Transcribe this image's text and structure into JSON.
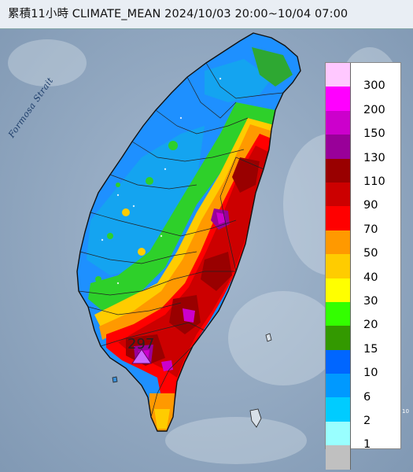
{
  "title": "累積11小時 CLIMATE_MEAN 2024/10/03 20:00~10/04 07:00",
  "strait_label": "Formosa Strait",
  "peak_value": "297",
  "legend": {
    "labels": [
      "300",
      "200",
      "150",
      "130",
      "110",
      "90",
      "70",
      "50",
      "40",
      "30",
      "20",
      "15",
      "10",
      "6",
      "2",
      "1"
    ],
    "colors": [
      "#ffc8ff",
      "#ff00ff",
      "#cc00cc",
      "#990099",
      "#990000",
      "#cc0000",
      "#ff0000",
      "#ff9900",
      "#ffcc00",
      "#ffff00",
      "#33ff00",
      "#339900",
      "#0066ff",
      "#0099ff",
      "#00ccff",
      "#99ffff",
      "#c0c0c0"
    ]
  }
}
